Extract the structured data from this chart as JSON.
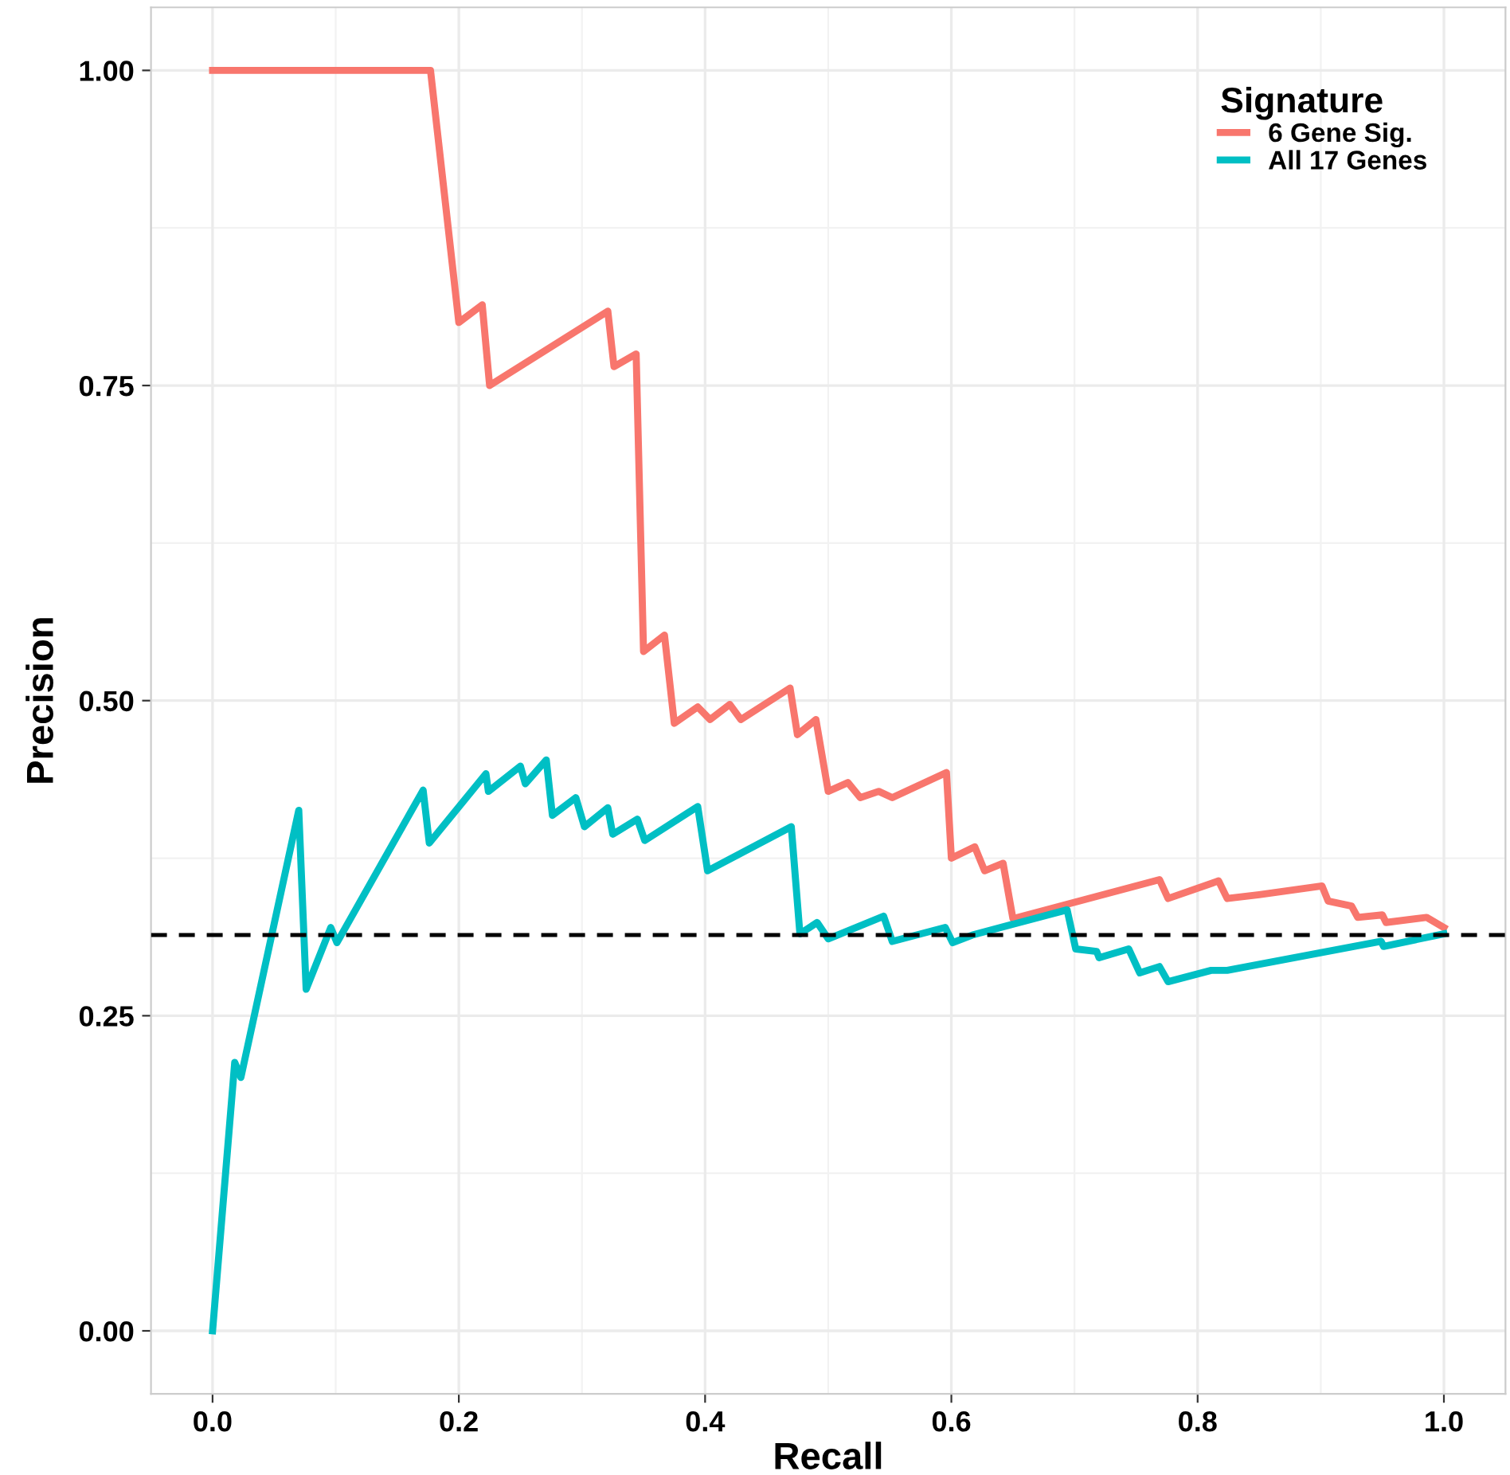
{
  "chart_data": {
    "type": "line",
    "xlabel": "Recall",
    "ylabel": "Precision",
    "legend_title": "Signature",
    "legend": "top right",
    "grid": true,
    "line_style": "solid",
    "marker": "none",
    "xlim": [
      -0.05,
      1.05
    ],
    "ylim": [
      -0.05,
      1.05
    ],
    "xticks": [
      {
        "value": 0,
        "label": "0.0"
      },
      {
        "value": 0.2,
        "label": "0.2"
      },
      {
        "value": 0.4,
        "label": "0.4"
      },
      {
        "value": 0.6,
        "label": "0.6"
      },
      {
        "value": 0.8,
        "label": "0.8"
      },
      {
        "value": 1,
        "label": "1.0"
      }
    ],
    "yticks": [
      {
        "value": 0,
        "label": "0.00"
      },
      {
        "value": 0.25,
        "label": "0.25"
      },
      {
        "value": 0.5,
        "label": "0.50"
      },
      {
        "value": 0.75,
        "label": "0.75"
      },
      {
        "value": 1,
        "label": "1.00"
      }
    ],
    "ref_lines": [
      {
        "axis": "y",
        "value": 0.314,
        "color": "#000000",
        "line_style": "dashed"
      }
    ],
    "series": [
      {
        "name": "6 Gene Sig.",
        "color": "#f8766d",
        "x": [
          0,
          0.177,
          0.2,
          0.219,
          0.225,
          0.321,
          0.326,
          0.344,
          0.35,
          0.367,
          0.375,
          0.394,
          0.404,
          0.42,
          0.429,
          0.469,
          0.475,
          0.49,
          0.5,
          0.516,
          0.526,
          0.541,
          0.552,
          0.596,
          0.6,
          0.619,
          0.627,
          0.642,
          0.65,
          0.769,
          0.776,
          0.817,
          0.824,
          0.85,
          0.901,
          0.906,
          0.925,
          0.93,
          0.95,
          0.953,
          0.986,
          1.0
        ],
        "values": [
          1.0,
          1.0,
          0.8,
          0.814,
          0.75,
          0.809,
          0.765,
          0.775,
          0.539,
          0.552,
          0.482,
          0.495,
          0.485,
          0.497,
          0.485,
          0.51,
          0.473,
          0.485,
          0.428,
          0.435,
          0.423,
          0.428,
          0.423,
          0.443,
          0.375,
          0.384,
          0.365,
          0.371,
          0.327,
          0.358,
          0.343,
          0.357,
          0.343,
          0.346,
          0.353,
          0.341,
          0.337,
          0.328,
          0.33,
          0.324,
          0.328,
          0.32
        ]
      },
      {
        "name": "All 17 Genes",
        "color": "#00bfc4",
        "x": [
          0,
          0.018,
          0.023,
          0.07,
          0.076,
          0.096,
          0.101,
          0.171,
          0.176,
          0.222,
          0.224,
          0.25,
          0.254,
          0.271,
          0.276,
          0.295,
          0.302,
          0.321,
          0.325,
          0.345,
          0.351,
          0.394,
          0.402,
          0.47,
          0.477,
          0.491,
          0.5,
          0.545,
          0.552,
          0.595,
          0.601,
          0.617,
          0.694,
          0.701,
          0.718,
          0.72,
          0.744,
          0.753,
          0.769,
          0.776,
          0.811,
          0.824,
          0.949,
          0.951,
          1.0
        ],
        "values": [
          0,
          0.213,
          0.201,
          0.413,
          0.271,
          0.32,
          0.308,
          0.429,
          0.387,
          0.442,
          0.428,
          0.448,
          0.434,
          0.453,
          0.409,
          0.423,
          0.4,
          0.415,
          0.394,
          0.406,
          0.389,
          0.416,
          0.365,
          0.4,
          0.315,
          0.324,
          0.311,
          0.329,
          0.309,
          0.32,
          0.308,
          0.314,
          0.334,
          0.303,
          0.301,
          0.296,
          0.303,
          0.284,
          0.289,
          0.277,
          0.286,
          0.286,
          0.309,
          0.305,
          0.315
        ]
      }
    ]
  }
}
